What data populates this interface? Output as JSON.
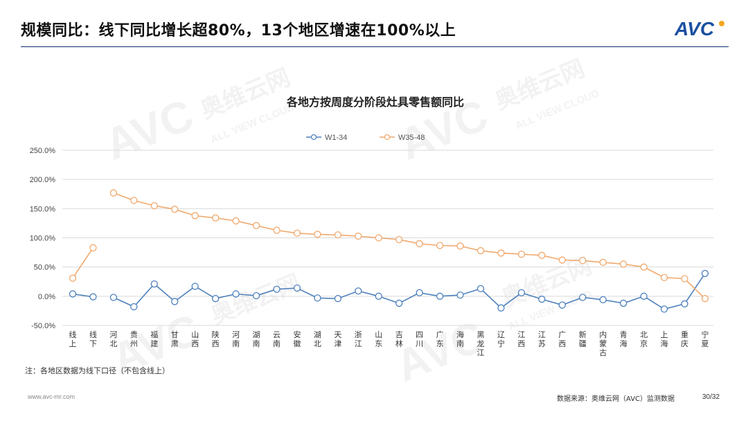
{
  "slide": {
    "title": "规模同比：线下同比增长超80%，13个地区增速在100%以上",
    "logo_text": "AVC",
    "footnote": "注：各地区数据为线下口径（不包含线上）",
    "footer_url": "www.avc-mr.com",
    "footer_source": "数据来源：奥维云网（AVC）监测数据",
    "page_number": "30/32",
    "watermark_brand": "AVC",
    "watermark_cn": "奥维云网",
    "watermark_en": "ALL VIEW CLOUD",
    "colors": {
      "accent": "#0b2e6b",
      "logo": "#1a4fa0",
      "logo_dot": "#f5a623"
    }
  },
  "chart_data": {
    "type": "line",
    "title": "各地方按周度分阶段灶具零售额同比",
    "legend_position": "top-center",
    "grid": true,
    "ylim": [
      -50,
      250
    ],
    "yticks": [
      "250.0%",
      "200.0%",
      "150.0%",
      "100.0%",
      "50.0%",
      "0.0%",
      "-50.0%"
    ],
    "ytick_values": [
      250,
      200,
      150,
      100,
      50,
      0,
      -50
    ],
    "categories": [
      "线上",
      "线下",
      "河北",
      "贵州",
      "福建",
      "甘肃",
      "山西",
      "陕西",
      "河南",
      "湖南",
      "云南",
      "安徽",
      "湖北",
      "天津",
      "浙江",
      "山东",
      "吉林",
      "四川",
      "广东",
      "海南",
      "黑龙江",
      "辽宁",
      "江西",
      "江苏",
      "广西",
      "新疆",
      "内蒙古",
      "青海",
      "北京",
      "上海",
      "重庆",
      "宁夏"
    ],
    "series": [
      {
        "name": "W1-34",
        "color": "#4f81bd",
        "values": [
          4,
          -1,
          -2,
          -18,
          21,
          -9,
          17,
          -4,
          4,
          1,
          12,
          14,
          -3,
          -4,
          9,
          0,
          -12,
          6,
          0,
          2,
          13,
          -20,
          6,
          -5,
          -15,
          -2,
          -6,
          -12,
          0,
          -22,
          -13,
          39
        ],
        "segments": [
          [
            0,
            1
          ],
          [
            2,
            31
          ]
        ]
      },
      {
        "name": "W35-48",
        "color": "#f0a96e",
        "values": [
          31,
          83,
          177,
          164,
          155,
          149,
          138,
          134,
          129,
          121,
          113,
          108,
          106,
          105,
          103,
          100,
          97,
          90,
          87,
          86,
          78,
          74,
          72,
          70,
          62,
          61,
          58,
          55,
          50,
          32,
          30,
          -4
        ],
        "segments": [
          [
            0,
            1
          ],
          [
            2,
            31
          ]
        ]
      }
    ]
  }
}
